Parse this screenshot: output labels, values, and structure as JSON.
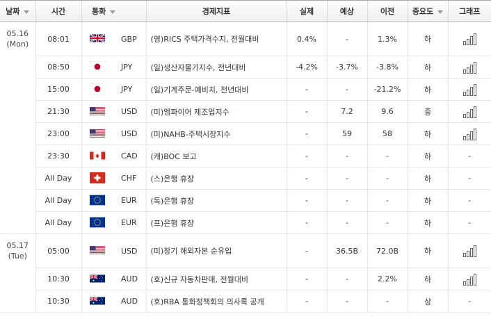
{
  "headers": {
    "date": "날짜",
    "time": "시간",
    "currency": "통화",
    "indicator": "경제지표",
    "actual": "실제",
    "forecast": "예상",
    "previous": "이전",
    "importance": "중요도",
    "graph": "그래프"
  },
  "dates": [
    {
      "day": "05.16",
      "weekday": "(Mon)"
    },
    {
      "day": "05.17",
      "weekday": "(Tue)"
    }
  ],
  "rows": [
    {
      "time": "08:01",
      "flag": "uk-flag-icon",
      "currency": "GBP",
      "indicator": "(영)RICS 주택가격수지, 전월대비",
      "actual": "0.4%",
      "forecast": "-",
      "previous": "1.3%",
      "importance": "하",
      "graph": "bar-chart-icon"
    },
    {
      "time": "08:50",
      "flag": "japan-flag-icon",
      "currency": "JPY",
      "indicator": "(일)생산자물가지수, 전년대비",
      "actual": "-4.2%",
      "forecast": "-3.7%",
      "previous": "-3.8%",
      "importance": "하",
      "graph": "bar-chart-icon"
    },
    {
      "time": "15:00",
      "flag": "japan-flag-icon",
      "currency": "JPY",
      "indicator": "(일)기계주문-예비치, 전년대비",
      "actual": "-",
      "forecast": "-",
      "previous": "-21.2%",
      "importance": "하",
      "graph": "bar-chart-icon"
    },
    {
      "time": "21:30",
      "flag": "us-flag-icon",
      "currency": "USD",
      "indicator": "(미)엠파이어 제조업지수",
      "actual": "-",
      "forecast": "7.2",
      "previous": "9.6",
      "importance": "중",
      "graph": "bar-chart-icon"
    },
    {
      "time": "23:00",
      "flag": "us-flag-icon",
      "currency": "USD",
      "indicator": "(미)NAHB-주택시장지수",
      "actual": "-",
      "forecast": "59",
      "previous": "58",
      "importance": "하",
      "graph": "bar-chart-icon"
    },
    {
      "time": "23:30",
      "flag": "canada-flag-icon",
      "currency": "CAD",
      "indicator": "(캐)BOC 보고",
      "actual": "-",
      "forecast": "-",
      "previous": "-",
      "importance": "하",
      "graph": "-"
    },
    {
      "time": "All Day",
      "flag": "swiss-flag-icon",
      "currency": "CHF",
      "indicator": "(스)은행 휴장",
      "actual": "-",
      "forecast": "-",
      "previous": "-",
      "importance": "하",
      "graph": "-"
    },
    {
      "time": "All Day",
      "flag": "eu-flag-icon",
      "currency": "EUR",
      "indicator": "(독)은행 휴장",
      "actual": "-",
      "forecast": "-",
      "previous": "-",
      "importance": "하",
      "graph": "-"
    },
    {
      "time": "All Day",
      "flag": "eu-flag-icon",
      "currency": "EUR",
      "indicator": "(프)은행 휴장",
      "actual": "-",
      "forecast": "-",
      "previous": "-",
      "importance": "하",
      "graph": "-"
    },
    {
      "time": "05:00",
      "flag": "us-flag-icon",
      "currency": "USD",
      "indicator": "(미)장기 해외자본 순유입",
      "actual": "-",
      "forecast": "36.5B",
      "previous": "72.0B",
      "importance": "하",
      "graph": "bar-chart-icon"
    },
    {
      "time": "10:30",
      "flag": "australia-flag-icon",
      "currency": "AUD",
      "indicator": "(호)신규 자동차판매, 전월대비",
      "actual": "-",
      "forecast": "-",
      "previous": "2.2%",
      "importance": "하",
      "graph": "bar-chart-icon"
    },
    {
      "time": "10:30",
      "flag": "australia-flag-icon",
      "currency": "AUD",
      "indicator": "(호)RBA 통화정책회의 의사록 공개",
      "actual": "-",
      "forecast": "-",
      "previous": "-",
      "importance": "상",
      "graph": "-"
    }
  ]
}
